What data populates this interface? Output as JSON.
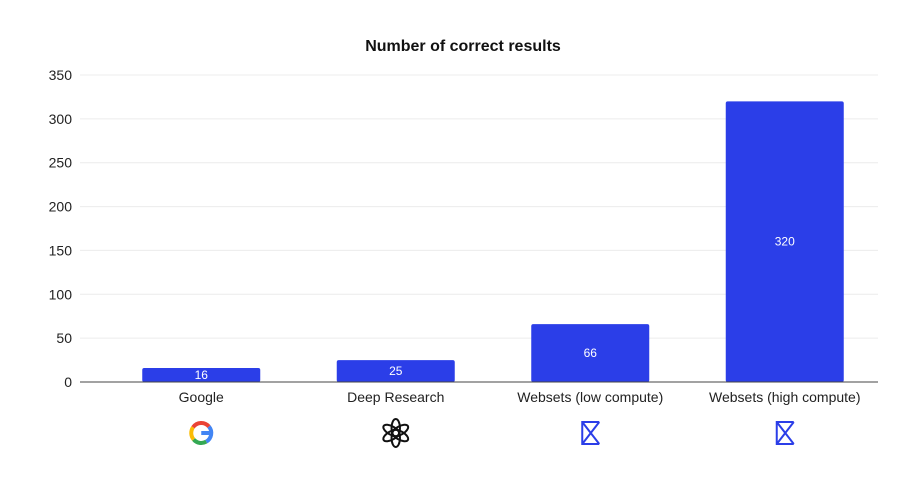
{
  "chart_data": {
    "type": "bar",
    "title": "Number of correct results",
    "xlabel": "",
    "ylabel": "",
    "categories": [
      "Google",
      "Deep Research",
      "Websets (low compute)",
      "Websets (high compute)"
    ],
    "values": [
      16,
      25,
      66,
      320
    ],
    "data_labels": [
      "16",
      "25",
      "66",
      "320"
    ],
    "yticks": [
      0,
      50,
      100,
      150,
      200,
      250,
      300,
      350
    ],
    "ylim": [
      0,
      350
    ],
    "grid": true,
    "legend": "none",
    "bar_color": "#2b3ee8",
    "category_icons": [
      "google-logo-icon",
      "openai-logo-icon",
      "exa-logo-icon",
      "exa-logo-icon"
    ]
  }
}
